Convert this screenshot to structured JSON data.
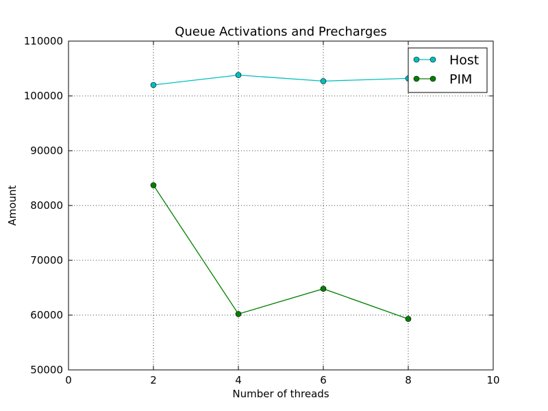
{
  "chart_data": {
    "type": "line",
    "title": "Queue Activations and Precharges",
    "xlabel": "Number of threads",
    "ylabel": "Amount",
    "xlim": [
      0,
      10
    ],
    "ylim": [
      50000,
      110000
    ],
    "xticks": [
      0,
      2,
      4,
      6,
      8,
      10
    ],
    "yticks": [
      50000,
      60000,
      70000,
      80000,
      90000,
      100000,
      110000
    ],
    "grid": true,
    "legend_position": "top-right",
    "series": [
      {
        "name": "Host",
        "color": "#00bfbf",
        "marker": "circle",
        "x": [
          2,
          4,
          6,
          8
        ],
        "y": [
          102000,
          103800,
          102700,
          103200
        ]
      },
      {
        "name": "PIM",
        "color": "#008000",
        "marker": "circle",
        "x": [
          2,
          4,
          6,
          8
        ],
        "y": [
          83700,
          60200,
          64800,
          59300
        ]
      }
    ]
  }
}
